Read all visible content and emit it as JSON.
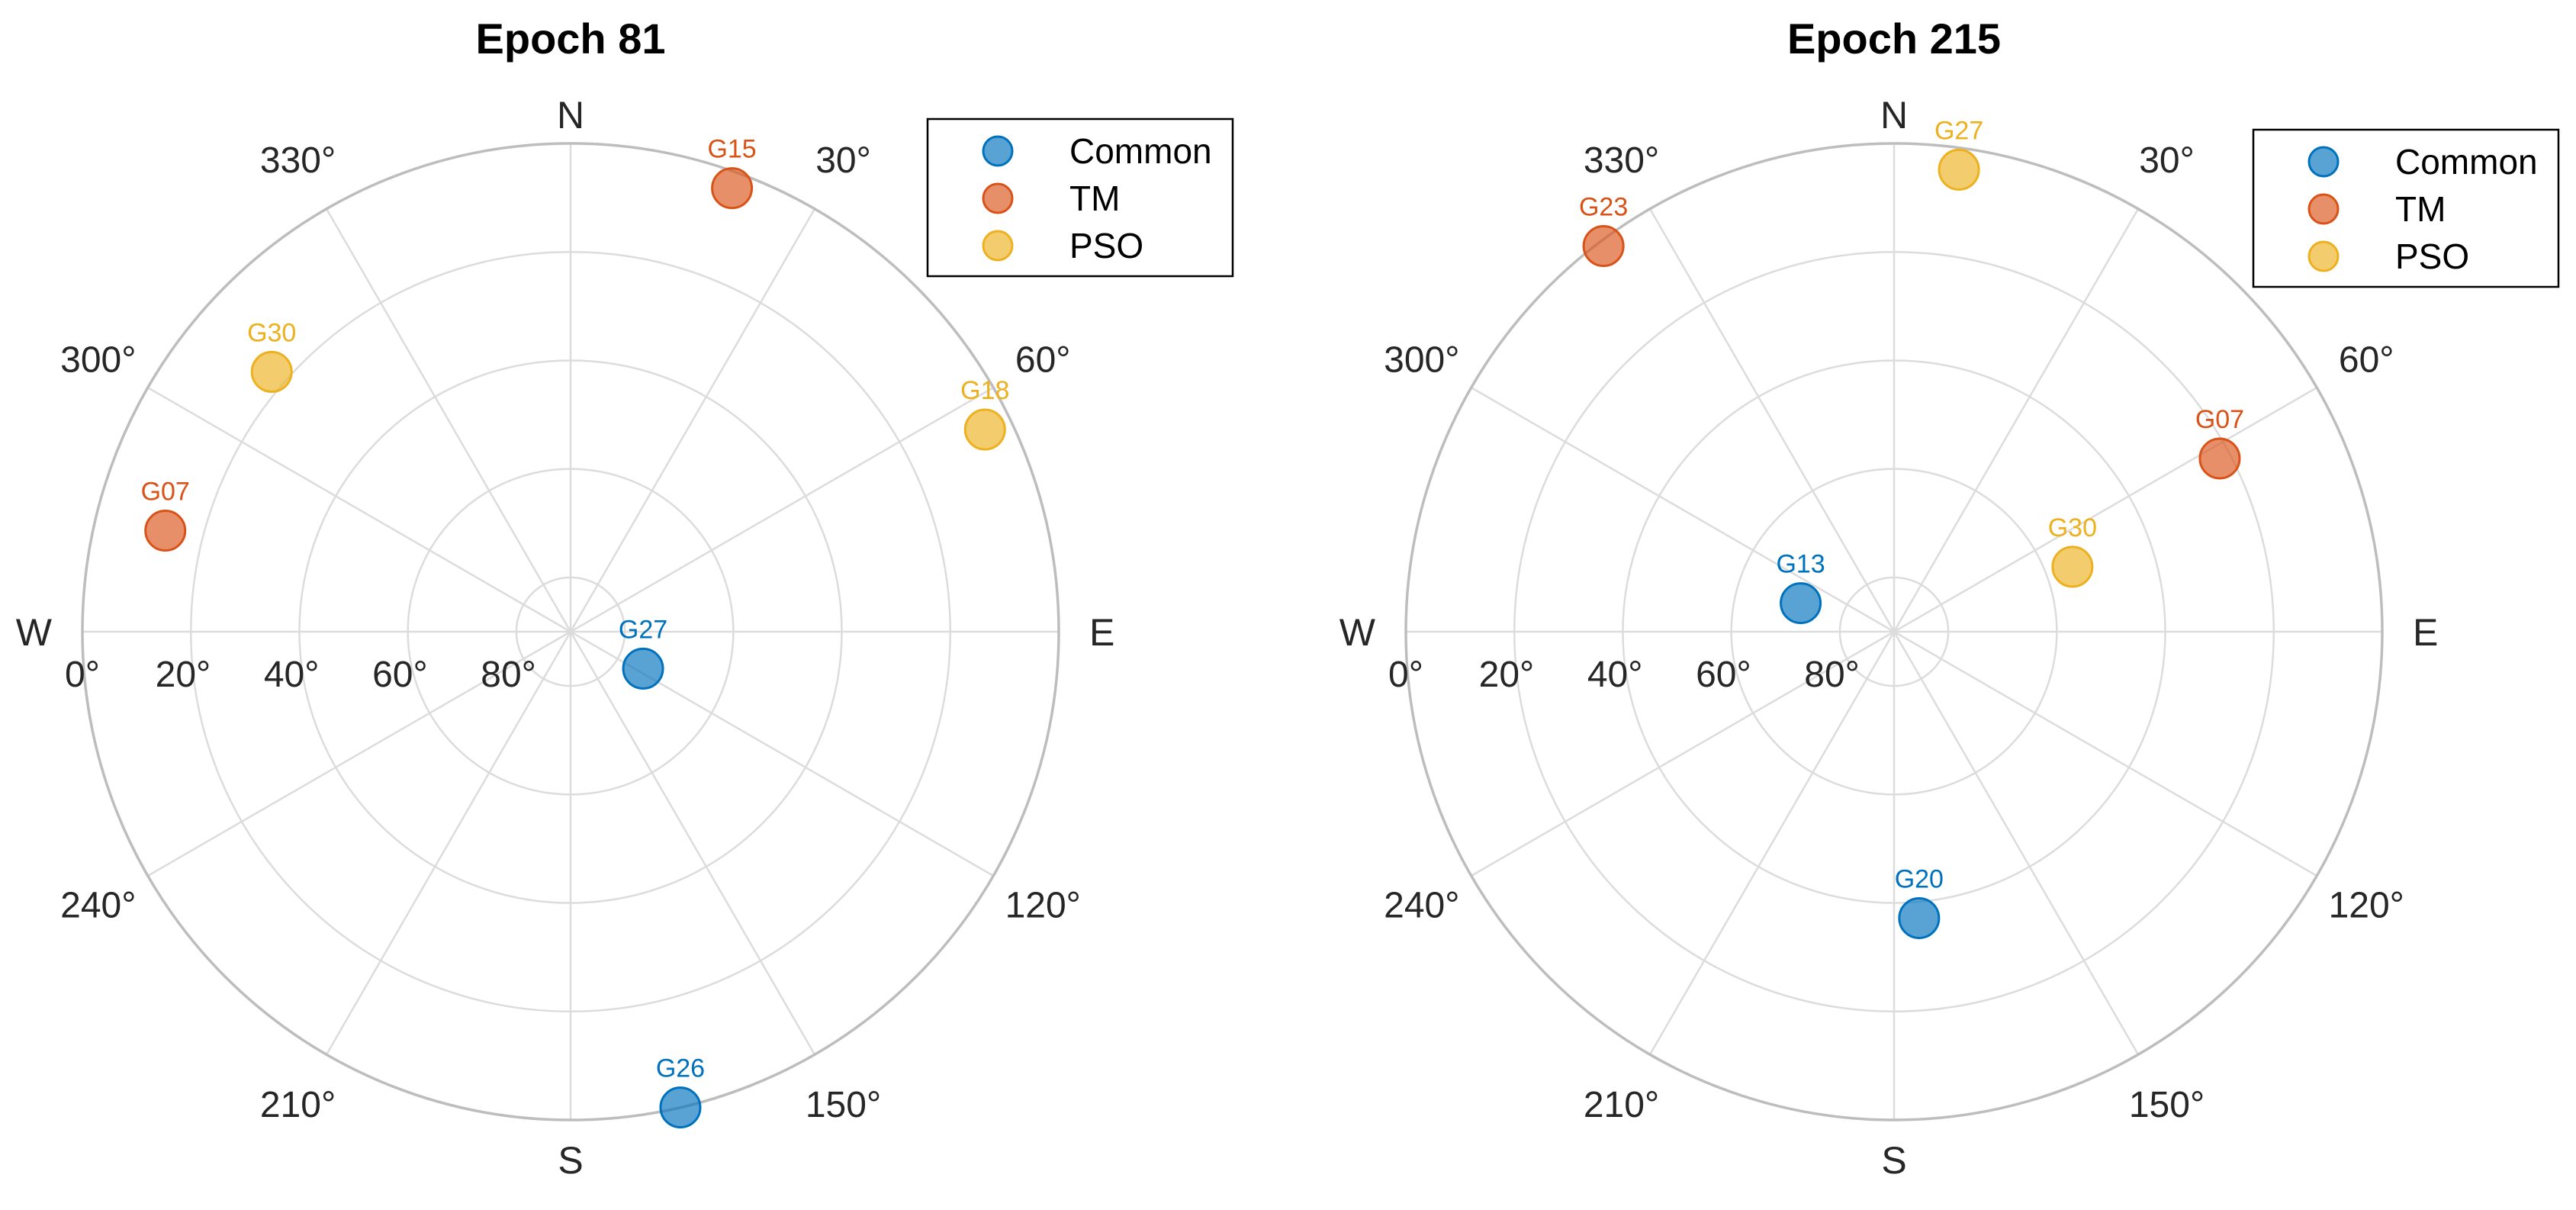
{
  "colors": {
    "Common": "#0072BD",
    "TM": "#D95319",
    "PSO": "#EDB120",
    "grid": "#dcdcdc",
    "frame": "#bdbdbd"
  },
  "chart_data": [
    {
      "type": "scatter",
      "projection": "polar-skyplot",
      "title": "Epoch 81",
      "cardinals": {
        "N": "N",
        "E": "E",
        "S": "S",
        "W": "W"
      },
      "azimuth_labels": [
        "30°",
        "60°",
        "120°",
        "150°",
        "210°",
        "240°",
        "300°",
        "330°"
      ],
      "radial_labels": [
        "0°",
        "20°",
        "40°",
        "60°",
        "80°"
      ],
      "radial_tick_values": [
        0,
        20,
        40,
        60,
        80
      ],
      "elevation_range": [
        0,
        90
      ],
      "grid": true,
      "legend": {
        "location": "top-right",
        "entries": [
          "Common",
          "TM",
          "PSO"
        ]
      },
      "series": [
        {
          "name": "Common",
          "points": [
            {
              "sat": "G27",
              "azimuth": 117,
              "elevation": 75
            },
            {
              "sat": "G26",
              "azimuth": 167,
              "elevation": 0
            }
          ]
        },
        {
          "name": "TM",
          "points": [
            {
              "sat": "G15",
              "azimuth": 20,
              "elevation": 3
            },
            {
              "sat": "G07",
              "azimuth": 284,
              "elevation": 13
            }
          ]
        },
        {
          "name": "PSO",
          "points": [
            {
              "sat": "G18",
              "azimuth": 64,
              "elevation": 5
            },
            {
              "sat": "G30",
              "azimuth": 311,
              "elevation": 17
            }
          ]
        }
      ]
    },
    {
      "type": "scatter",
      "projection": "polar-skyplot",
      "title": "Epoch 215",
      "cardinals": {
        "N": "N",
        "E": "E",
        "S": "S",
        "W": "W"
      },
      "azimuth_labels": [
        "30°",
        "60°",
        "120°",
        "150°",
        "210°",
        "240°",
        "300°",
        "330°"
      ],
      "radial_labels": [
        "0°",
        "20°",
        "40°",
        "60°",
        "80°"
      ],
      "radial_tick_values": [
        0,
        20,
        40,
        60,
        80
      ],
      "elevation_range": [
        0,
        90
      ],
      "grid": true,
      "legend": {
        "location": "top-right",
        "entries": [
          "Common",
          "TM",
          "PSO"
        ]
      },
      "series": [
        {
          "name": "Common",
          "points": [
            {
              "sat": "G13",
              "azimuth": 287,
              "elevation": 72
            },
            {
              "sat": "G20",
              "azimuth": 175,
              "elevation": 37
            }
          ]
        },
        {
          "name": "TM",
          "points": [
            {
              "sat": "G23",
              "azimuth": 323,
              "elevation": 1
            },
            {
              "sat": "G07",
              "azimuth": 62,
              "elevation": 22
            }
          ]
        },
        {
          "name": "PSO",
          "points": [
            {
              "sat": "G27",
              "azimuth": 8,
              "elevation": 4
            },
            {
              "sat": "G30",
              "azimuth": 70,
              "elevation": 55
            }
          ]
        }
      ]
    }
  ]
}
